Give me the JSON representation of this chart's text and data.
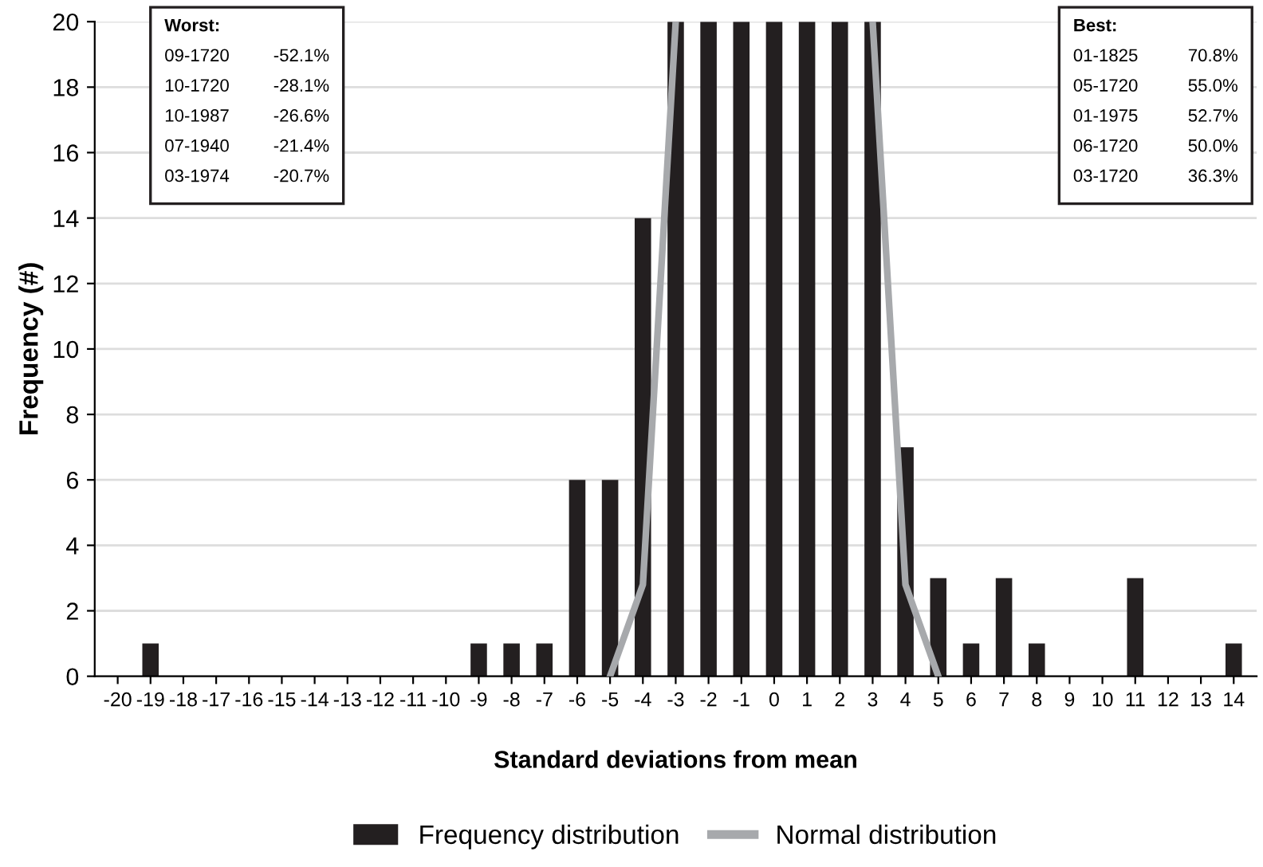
{
  "chart_data": {
    "type": "bar",
    "xlabel": "Standard deviations from mean",
    "ylabel": "Frequency (#)",
    "categories": [
      "-20",
      "-19",
      "-18",
      "-17",
      "-16",
      "-15",
      "-14",
      "-13",
      "-12",
      "-11",
      "-10",
      "-9",
      "-8",
      "-7",
      "-6",
      "-5",
      "-4",
      "-3",
      "-2",
      "-1",
      "0",
      "1",
      "2",
      "3",
      "4",
      "5",
      "6",
      "7",
      "8",
      "9",
      "10",
      "11",
      "12",
      "13",
      "14"
    ],
    "series": [
      {
        "name": "Frequency distribution",
        "color": "#231f20",
        "values": [
          0,
          1,
          0,
          0,
          0,
          0,
          0,
          0,
          0,
          0,
          0,
          1,
          1,
          1,
          6,
          6,
          14,
          20,
          20,
          20,
          20,
          20,
          20,
          20,
          7,
          3,
          1,
          3,
          1,
          0,
          0,
          3,
          0,
          0,
          1
        ]
      },
      {
        "name": "Normal distribution",
        "type": "line",
        "color": "#a7a9ac",
        "values": [
          null,
          null,
          null,
          null,
          null,
          null,
          null,
          null,
          null,
          null,
          null,
          null,
          null,
          null,
          null,
          0,
          2.8,
          20,
          null,
          null,
          null,
          null,
          null,
          20,
          2.8,
          0,
          null,
          null,
          null,
          null,
          null,
          null,
          null,
          null,
          null
        ]
      }
    ],
    "ylim": [
      0,
      20
    ],
    "yticks": [
      0,
      2,
      4,
      6,
      8,
      10,
      12,
      14,
      16,
      18,
      20
    ],
    "grid": "y",
    "legend": "bottom",
    "annotations": [
      "Worst:\n09-1720 -52.1%\n10-1720 -28.1%\n10-1987 -26.6%\n07-1940 -21.4%\n03-1974 -20.7%",
      "Best:\n01-1825 70.8%\n05-1720 55.0%\n01-1975 52.7%\n06-1720 50.0%\n03-1720 36.3%"
    ]
  }
}
